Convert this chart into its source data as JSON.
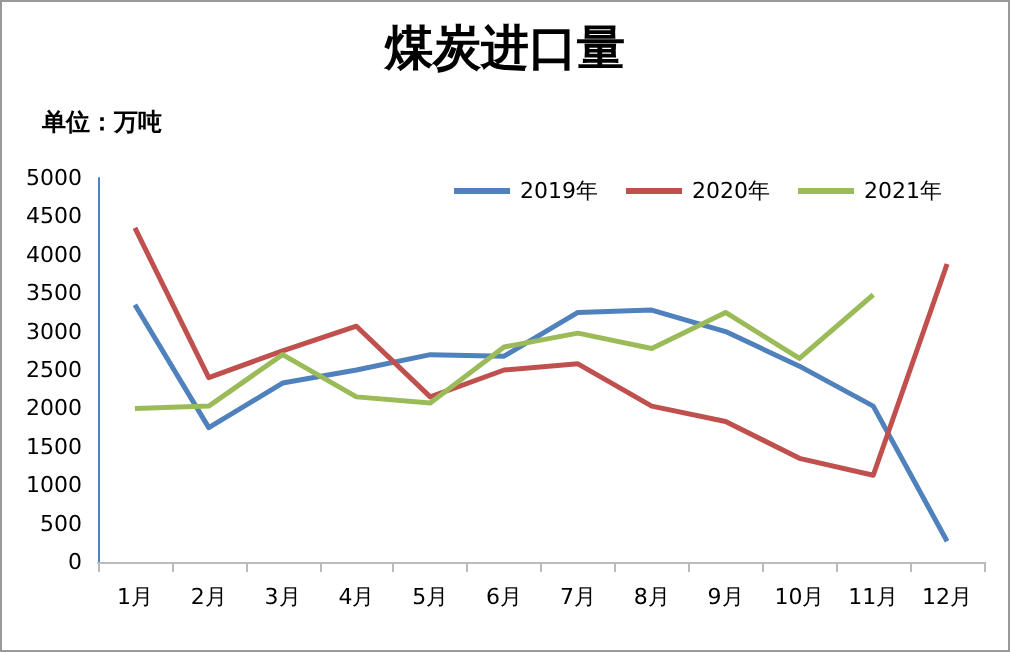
{
  "chart_data": {
    "type": "line",
    "title": "煤炭进口量",
    "annotations": [
      "单位：万吨"
    ],
    "categories": [
      "1月",
      "2月",
      "3月",
      "4月",
      "5月",
      "6月",
      "7月",
      "8月",
      "9月",
      "10月",
      "11月",
      "12月"
    ],
    "series": [
      {
        "name": "2019年",
        "color": "#4f81bd",
        "values": [
          3350,
          1750,
          2330,
          2500,
          2700,
          2680,
          3250,
          3280,
          3000,
          2550,
          2030,
          270
        ]
      },
      {
        "name": "2020年",
        "color": "#c0504d",
        "values": [
          4350,
          2400,
          2750,
          3070,
          2150,
          2500,
          2580,
          2030,
          1830,
          1350,
          1130,
          3880
        ]
      },
      {
        "name": "2021年",
        "color": "#9bbb59",
        "values": [
          2000,
          2030,
          2700,
          2150,
          2070,
          2800,
          2980,
          2780,
          3250,
          2650,
          3480,
          null
        ]
      }
    ],
    "ylim": [
      0,
      5000
    ],
    "yticks": [
      0,
      500,
      1000,
      1500,
      2000,
      2500,
      3000,
      3500,
      4000,
      4500,
      5000
    ],
    "grid": false,
    "legend": "top right",
    "marker": "none",
    "line_style": "solid"
  }
}
